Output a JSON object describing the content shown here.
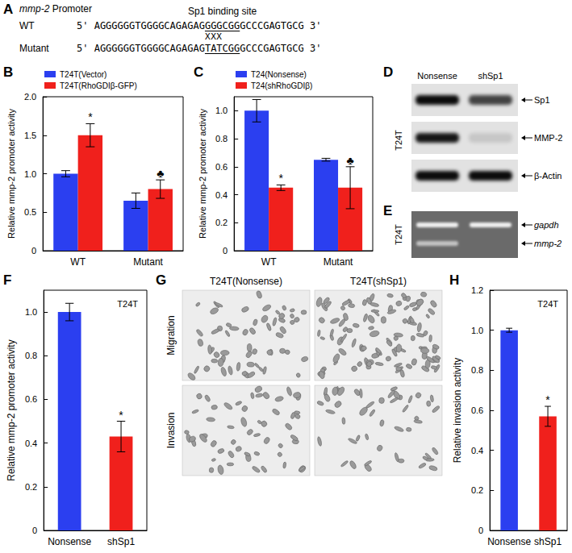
{
  "panel_A": {
    "panel_label": "A",
    "title": {
      "italic": "mmp-2",
      "plain": "Promoter"
    },
    "site_label": "Sp1 binding site",
    "rows": [
      {
        "name": "WT",
        "before": "5' AGGGGGGTGGGGCAGAGAG",
        "site": "GGGCGG",
        "after": "GCCCGAGTGCG 3'"
      },
      {
        "name": "Mutant",
        "before": "5' AGGGGGGTGGGGCAGAGAG",
        "site": "TATCGG",
        "after": "GCCCGAGTGCG 3'"
      }
    ],
    "mutation_mark": "XXX"
  },
  "chart_data": [
    {
      "panel_label": "B",
      "type": "bar",
      "ylabel": "Relative mmp-2 promoter activity",
      "categories": [
        "WT",
        "Mutant"
      ],
      "legend": "top-left",
      "grid": false,
      "ylim": [
        0,
        2
      ],
      "yticks": [
        0,
        0.5,
        {
          "value": 1,
          "label": "1.0"
        },
        1.5,
        {
          "value": 2,
          "label": "2.0"
        }
      ],
      "series": [
        {
          "name": "T24T(Vector)",
          "color": "#2b3ff0",
          "values": [
            1.0,
            0.65
          ],
          "errors": [
            0.04,
            0.1
          ]
        },
        {
          "name": "T24T(RhoGDIβ-GFP)",
          "color": "#f0201c",
          "values": [
            1.5,
            0.8
          ],
          "errors": [
            0.15,
            0.12
          ],
          "significance": [
            "*",
            "♣"
          ]
        }
      ]
    },
    {
      "panel_label": "C",
      "type": "bar",
      "ylabel": "Relative mmp-2 promoter activity",
      "categories": [
        "WT",
        "Mutant"
      ],
      "legend": "top-left",
      "grid": false,
      "ylim": [
        0,
        1.1
      ],
      "yticks": [
        0,
        0.2,
        0.4,
        0.6,
        0.8,
        {
          "value": 1,
          "label": "1.0"
        }
      ],
      "series": [
        {
          "name": "T24(Nonsense)",
          "color": "#2b3ff0",
          "values": [
            1.0,
            0.65
          ],
          "errors": [
            0.08,
            0.01
          ]
        },
        {
          "name": "T24(shRhoGDIβ)",
          "color": "#f0201c",
          "values": [
            0.45,
            0.45
          ],
          "errors": [
            0.02,
            0.15
          ],
          "significance": [
            "*",
            "♣"
          ]
        }
      ]
    },
    {
      "panel_label": "F",
      "type": "bar",
      "ylabel": "Relative mmp-2 promoter activity",
      "inset_label": "T24T",
      "categories": [
        "Nonsense",
        "shSp1"
      ],
      "grid": false,
      "ylim": [
        0,
        1.1
      ],
      "yticks": [
        0,
        0.2,
        0.4,
        0.6,
        0.8,
        {
          "value": 1,
          "label": "1.0"
        }
      ],
      "values": [
        1.0,
        0.43
      ],
      "errors": [
        0.04,
        0.07
      ],
      "colors": [
        "#2b3ff0",
        "#f0201c"
      ],
      "significance": [
        null,
        "*"
      ]
    },
    {
      "panel_label": "H",
      "type": "bar",
      "ylabel": "Relative invasion activity",
      "inset_label": "T24T",
      "categories": [
        "Nonsense",
        "shSp1"
      ],
      "grid": false,
      "ylim": [
        0,
        1.2
      ],
      "yticks": [
        0,
        0.2,
        0.4,
        0.6,
        0.8,
        {
          "value": 1,
          "label": "1.0"
        },
        1.2
      ],
      "values": [
        1.0,
        0.57
      ],
      "errors": [
        0.01,
        0.05
      ],
      "colors": [
        "#2b3ff0",
        "#f0201c"
      ],
      "significance": [
        null,
        "*"
      ]
    }
  ],
  "panel_D": {
    "panel_label": "D",
    "cell_line": "T24T",
    "lanes": [
      "Nonsense",
      "shSp1"
    ],
    "bands": [
      "Sp1",
      "MMP-2",
      "β-Actin"
    ]
  },
  "panel_E": {
    "panel_label": "E",
    "cell_line": "T24T",
    "bands": [
      "gapdh",
      "mmp-2"
    ]
  },
  "panel_G": {
    "panel_label": "G",
    "columns": [
      "T24T(Nonsense)",
      "T24T(shSp1)"
    ],
    "rows": [
      "Migration",
      "Invasion"
    ]
  }
}
